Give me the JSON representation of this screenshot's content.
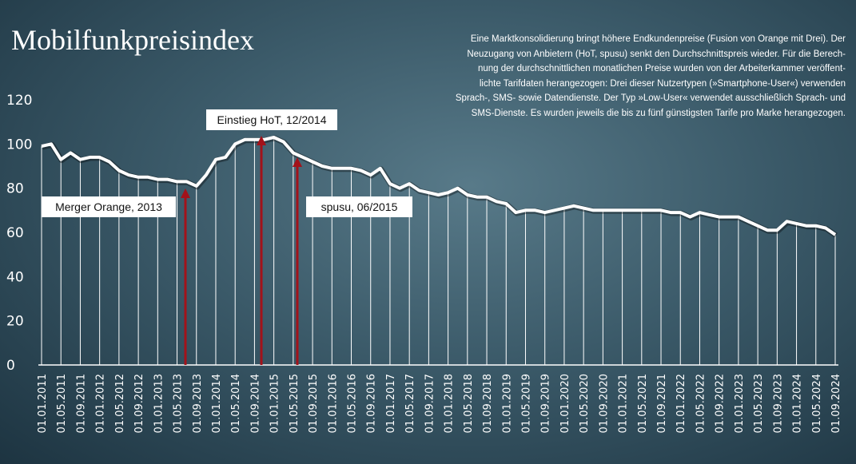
{
  "chart_data": {
    "type": "line",
    "title": "Mobilfunkpreisindex",
    "description": [
      "Eine Marktkonsolidierung bringt höhere Endkundenpreise (Fusion von Orange mit Drei). Der",
      "Neuzugang von Anbietern (HoT, spusu) senkt den Durchschnittspreis wieder. Für die Berech-",
      "nung der durchschnittlichen monatlichen Preise wurden von der Arbeiterkammer veröffent-",
      "lichte Tarifdaten herangezogen: Drei dieser Nutzertypen (»Smartphone-User«) verwenden",
      "Sprach-, SMS- sowie Datendienste. Der Typ »Low-User« verwendet ausschließlich Sprach- und",
      "SMS-Dienste. Es wurden jeweils die bis zu fünf günstigsten Tarife pro Marke herangezogen."
    ],
    "annotations": [
      "Einstieg HoT, 12/2014",
      "Merger Orange, 2013",
      "spusu, 06/2015"
    ],
    "categories": [
      "01.01.2011",
      null,
      "01.05.2011",
      null,
      "01.09.2011",
      null,
      "01.01.2012",
      null,
      "01.05.2012",
      null,
      "01.09.2012",
      null,
      "01.01.2013",
      null,
      "01.05.2013",
      null,
      "01.09.2013",
      null,
      "01.01.2014",
      null,
      "01.05.2014",
      null,
      "01.09.2014",
      null,
      "01.01.2015",
      null,
      "01.05.2015",
      null,
      "01.09.2015",
      null,
      "01.01.2016",
      null,
      "01.05.2016",
      null,
      "01.09.2016",
      null,
      "01.01.2017",
      null,
      "01.05.2017",
      null,
      "01.09.2017",
      null,
      "01.01.2018",
      null,
      "01.05.2018",
      null,
      "01.09.2018",
      null,
      "01.01.2019",
      null,
      "01.05.2019",
      null,
      "01.09.2019",
      null,
      "01.01.2020",
      null,
      "01.05.2020",
      null,
      "01.09.2020",
      null,
      "01.01.2021",
      null,
      "01.05.2021",
      null,
      "01.09.2021",
      null,
      "01.01.2022",
      null,
      "01.05.2022",
      null,
      "01.09.2022",
      null,
      "01.01.2023",
      null,
      "01.05.2023",
      null,
      "01.09.2023",
      null,
      "01.01.2024",
      null,
      "01.05.2024",
      null,
      "01.09.2024"
    ],
    "series": [
      {
        "name": "Mobilfunkpreisindex",
        "color": "#ffffff",
        "values": [
          99,
          100,
          93,
          96,
          93,
          94,
          94,
          92,
          88,
          86,
          85,
          85,
          84,
          84,
          83,
          83,
          81,
          86,
          93,
          94,
          100,
          102,
          102,
          102,
          103,
          101,
          96,
          94,
          92,
          90,
          89,
          89,
          89,
          88,
          86,
          89,
          82,
          80,
          82,
          79,
          78,
          77,
          78,
          80,
          77,
          76,
          76,
          74,
          73,
          69,
          70,
          70,
          69,
          70,
          71,
          72,
          71,
          70,
          70,
          70,
          70,
          70,
          70,
          70,
          70,
          69,
          69,
          67,
          69,
          68,
          67,
          67,
          67,
          65,
          63,
          61,
          61,
          65,
          64,
          63,
          63,
          62,
          59
        ]
      }
    ],
    "ylim": [
      0,
      120
    ],
    "yticks": [
      0,
      20,
      40,
      60,
      80,
      100,
      120
    ]
  }
}
